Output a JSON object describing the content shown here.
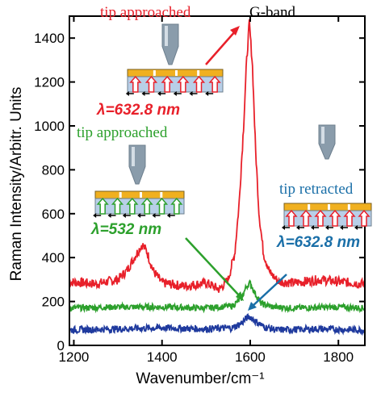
{
  "chart_data": {
    "type": "line",
    "xlabel": "Wavenumber/cm⁻¹",
    "ylabel": "Raman Intensity/Arbitr. Units",
    "xlim": [
      1190,
      1860
    ],
    "ylim": [
      0,
      1500
    ],
    "xticks": [
      1200,
      1400,
      1600,
      1800
    ],
    "yticks": [
      0,
      200,
      400,
      600,
      800,
      1000,
      1200,
      1400
    ],
    "xtick_labels": [
      "1200",
      "1400",
      "1600",
      "1800"
    ],
    "ytick_labels": [
      "0",
      "200",
      "400",
      "600",
      "800",
      "1000",
      "1200",
      "1400"
    ],
    "grid": false,
    "series": [
      {
        "color": "#e8202a",
        "x": [
          1190,
          1250,
          1300,
          1320,
          1340,
          1355,
          1365,
          1380,
          1400,
          1450,
          1500,
          1530,
          1550,
          1565,
          1575,
          1585,
          1592,
          1598,
          1605,
          1612,
          1620,
          1630,
          1645,
          1665,
          1700,
          1760,
          1800,
          1860
        ],
        "y": [
          290,
          280,
          300,
          340,
          410,
          460,
          430,
          340,
          285,
          270,
          285,
          255,
          300,
          420,
          650,
          1000,
          1300,
          1470,
          1280,
          900,
          600,
          420,
          330,
          290,
          285,
          300,
          290,
          280
        ]
      },
      {
        "color": "#2ca02c",
        "x": [
          1190,
          1300,
          1400,
          1500,
          1560,
          1580,
          1592,
          1600,
          1610,
          1625,
          1650,
          1700,
          1800,
          1860
        ],
        "y": [
          170,
          175,
          175,
          170,
          180,
          215,
          270,
          285,
          240,
          190,
          175,
          170,
          175,
          170
        ]
      },
      {
        "color": "#1f3a9e",
        "x": [
          1190,
          1300,
          1400,
          1500,
          1560,
          1580,
          1592,
          1600,
          1612,
          1630,
          1660,
          1750,
          1860
        ],
        "y": [
          70,
          75,
          80,
          75,
          80,
          100,
          125,
          130,
          110,
          85,
          70,
          75,
          70
        ]
      }
    ],
    "annotations": {
      "g_band": "G-band",
      "red_label": "tip approached",
      "red_lambda": "λ=632.8 nm",
      "green_label": "tip approached",
      "green_lambda": "λ=532 nm",
      "blue_label": "tip retracted",
      "blue_lambda": "λ=632.8 nm"
    },
    "colors": {
      "red": "#e8202a",
      "green": "#2ca02c",
      "blue": "#1f3a9e",
      "blue_text": "#1a6fa8",
      "gold": "#f0b020",
      "lightblue": "#b8cfe8"
    }
  }
}
